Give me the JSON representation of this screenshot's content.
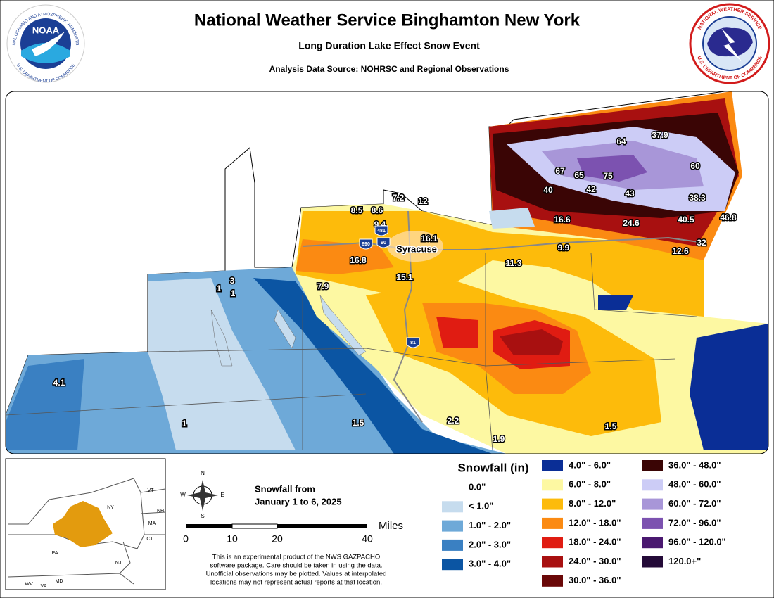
{
  "header": {
    "title": "National Weather Service Binghamton New York",
    "subtitle": "Long Duration Lake Effect Snow Event",
    "source": "Analysis Data Source: NOHRSC and Regional Observations"
  },
  "logos": {
    "noaa": "NOAA",
    "noaa_ring_top": "NATIONAL OCEANIC AND ATMOSPHERIC ADMINISTRATION",
    "noaa_ring_bottom": "U.S. DEPARTMENT OF COMMERCE",
    "nws_ring_top": "NATIONAL WEATHER SERVICE",
    "nws_ring_bottom": "U.S. DEPARTMENT OF COMMERCE"
  },
  "map": {
    "city": "Syracuse",
    "highways": [
      "481",
      "690",
      "90",
      "81"
    ],
    "snowfall_labels": [
      "37.9",
      "64",
      "67",
      "65",
      "75",
      "60",
      "40",
      "42",
      "43",
      "38.3",
      "16.6",
      "24.6",
      "40.5",
      "46.8",
      "32",
      "12.6",
      "9.9",
      "11.3",
      "7.2",
      "12",
      "8.5",
      "8.6",
      "9.4",
      "16.1",
      "16.8",
      "15.1",
      "7.9",
      "3",
      "1",
      "1",
      "4.1",
      "1",
      "1.5",
      "2.2",
      "1.9",
      "1.5"
    ]
  },
  "legend": {
    "title": "Snowfall (in)",
    "items": [
      {
        "label": "0.0\"",
        "color": "#ffffff"
      },
      {
        "label": "< 1.0\"",
        "color": "#c6dcee"
      },
      {
        "label": "1.0\" - 2.0\"",
        "color": "#6ea9d8"
      },
      {
        "label": "2.0\" - 3.0\"",
        "color": "#3a80c2"
      },
      {
        "label": "3.0\" - 4.0\"",
        "color": "#0b55a3"
      },
      {
        "label": "4.0\" - 6.0\"",
        "color": "#0a2e96"
      },
      {
        "label": "6.0\" - 8.0\"",
        "color": "#fdf8a2"
      },
      {
        "label": "8.0\" - 12.0\"",
        "color": "#fdbb0b"
      },
      {
        "label": "12.0\" - 18.0\"",
        "color": "#fb8a12"
      },
      {
        "label": "18.0\" - 24.0\"",
        "color": "#e01c12"
      },
      {
        "label": "24.0\" - 30.0\"",
        "color": "#a81010"
      },
      {
        "label": "30.0\" - 36.0\"",
        "color": "#6a0808"
      },
      {
        "label": "36.0\" - 48.0\"",
        "color": "#3a0505"
      },
      {
        "label": "48.0\" - 60.0\"",
        "color": "#ccccf6"
      },
      {
        "label": "60.0\" - 72.0\"",
        "color": "#a896d8"
      },
      {
        "label": "72.0\" - 96.0\"",
        "color": "#7c52b0"
      },
      {
        "label": "96.0\" - 120.0\"",
        "color": "#4a1870"
      },
      {
        "label": "120.0+\"",
        "color": "#240a38"
      }
    ]
  },
  "inset": {
    "states": [
      "NY",
      "VT",
      "NH",
      "MA",
      "CT",
      "PA",
      "NJ",
      "MD",
      "WV",
      "VA"
    ]
  },
  "compass": [
    "N",
    "E",
    "S",
    "W"
  ],
  "scale": {
    "unit": "Miles",
    "ticks": [
      "0",
      "10",
      "20",
      "40"
    ]
  },
  "period": [
    "Snowfall from",
    "January 1 to 6, 2025"
  ],
  "disclaimer": [
    "This is an experimental product of the NWS GAZPACHO",
    "software package. Care should be taken in using the data.",
    "Unofficial observations may be plotted. Values at interpolated",
    "locations may not represent actual reports at that location."
  ]
}
